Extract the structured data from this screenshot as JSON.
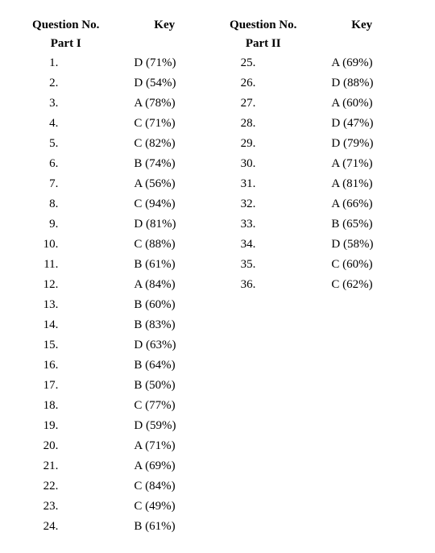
{
  "headers": {
    "question": "Question No.",
    "key": "Key",
    "part1": "Part I",
    "part2": "Part II"
  },
  "part1": [
    {
      "n": "1.",
      "k": "D (71%)"
    },
    {
      "n": "2.",
      "k": "D (54%)"
    },
    {
      "n": "3.",
      "k": "A (78%)"
    },
    {
      "n": "4.",
      "k": "C (71%)"
    },
    {
      "n": "5.",
      "k": "C (82%)"
    },
    {
      "n": "6.",
      "k": "B (74%)"
    },
    {
      "n": "7.",
      "k": "A (56%)"
    },
    {
      "n": "8.",
      "k": "C (94%)"
    },
    {
      "n": "9.",
      "k": "D (81%)"
    },
    {
      "n": "10.",
      "k": "C (88%)"
    },
    {
      "n": "11.",
      "k": "B (61%)"
    },
    {
      "n": "12.",
      "k": "A (84%)"
    },
    {
      "n": "13.",
      "k": "B (60%)"
    },
    {
      "n": "14.",
      "k": "B (83%)"
    },
    {
      "n": "15.",
      "k": "D (63%)"
    },
    {
      "n": "16.",
      "k": "B (64%)"
    },
    {
      "n": "17.",
      "k": "B (50%)"
    },
    {
      "n": "18.",
      "k": "C (77%)"
    },
    {
      "n": "19.",
      "k": "D (59%)"
    },
    {
      "n": "20.",
      "k": "A (71%)"
    },
    {
      "n": "21.",
      "k": "A (69%)"
    },
    {
      "n": "22.",
      "k": "C (84%)"
    },
    {
      "n": "23.",
      "k": "C (49%)"
    },
    {
      "n": "24.",
      "k": "B (61%)"
    }
  ],
  "part2": [
    {
      "n": "25.",
      "k": "A (69%)"
    },
    {
      "n": "26.",
      "k": "D (88%)"
    },
    {
      "n": "27.",
      "k": "A (60%)"
    },
    {
      "n": "28.",
      "k": "D (47%)"
    },
    {
      "n": "29.",
      "k": "D (79%)"
    },
    {
      "n": "30.",
      "k": "A (71%)"
    },
    {
      "n": "31.",
      "k": "A (81%)"
    },
    {
      "n": "32.",
      "k": "A (66%)"
    },
    {
      "n": "33.",
      "k": "B (65%)"
    },
    {
      "n": "34.",
      "k": "D (58%)"
    },
    {
      "n": "35.",
      "k": "C (60%)"
    },
    {
      "n": "36.",
      "k": "C (62%)"
    }
  ]
}
